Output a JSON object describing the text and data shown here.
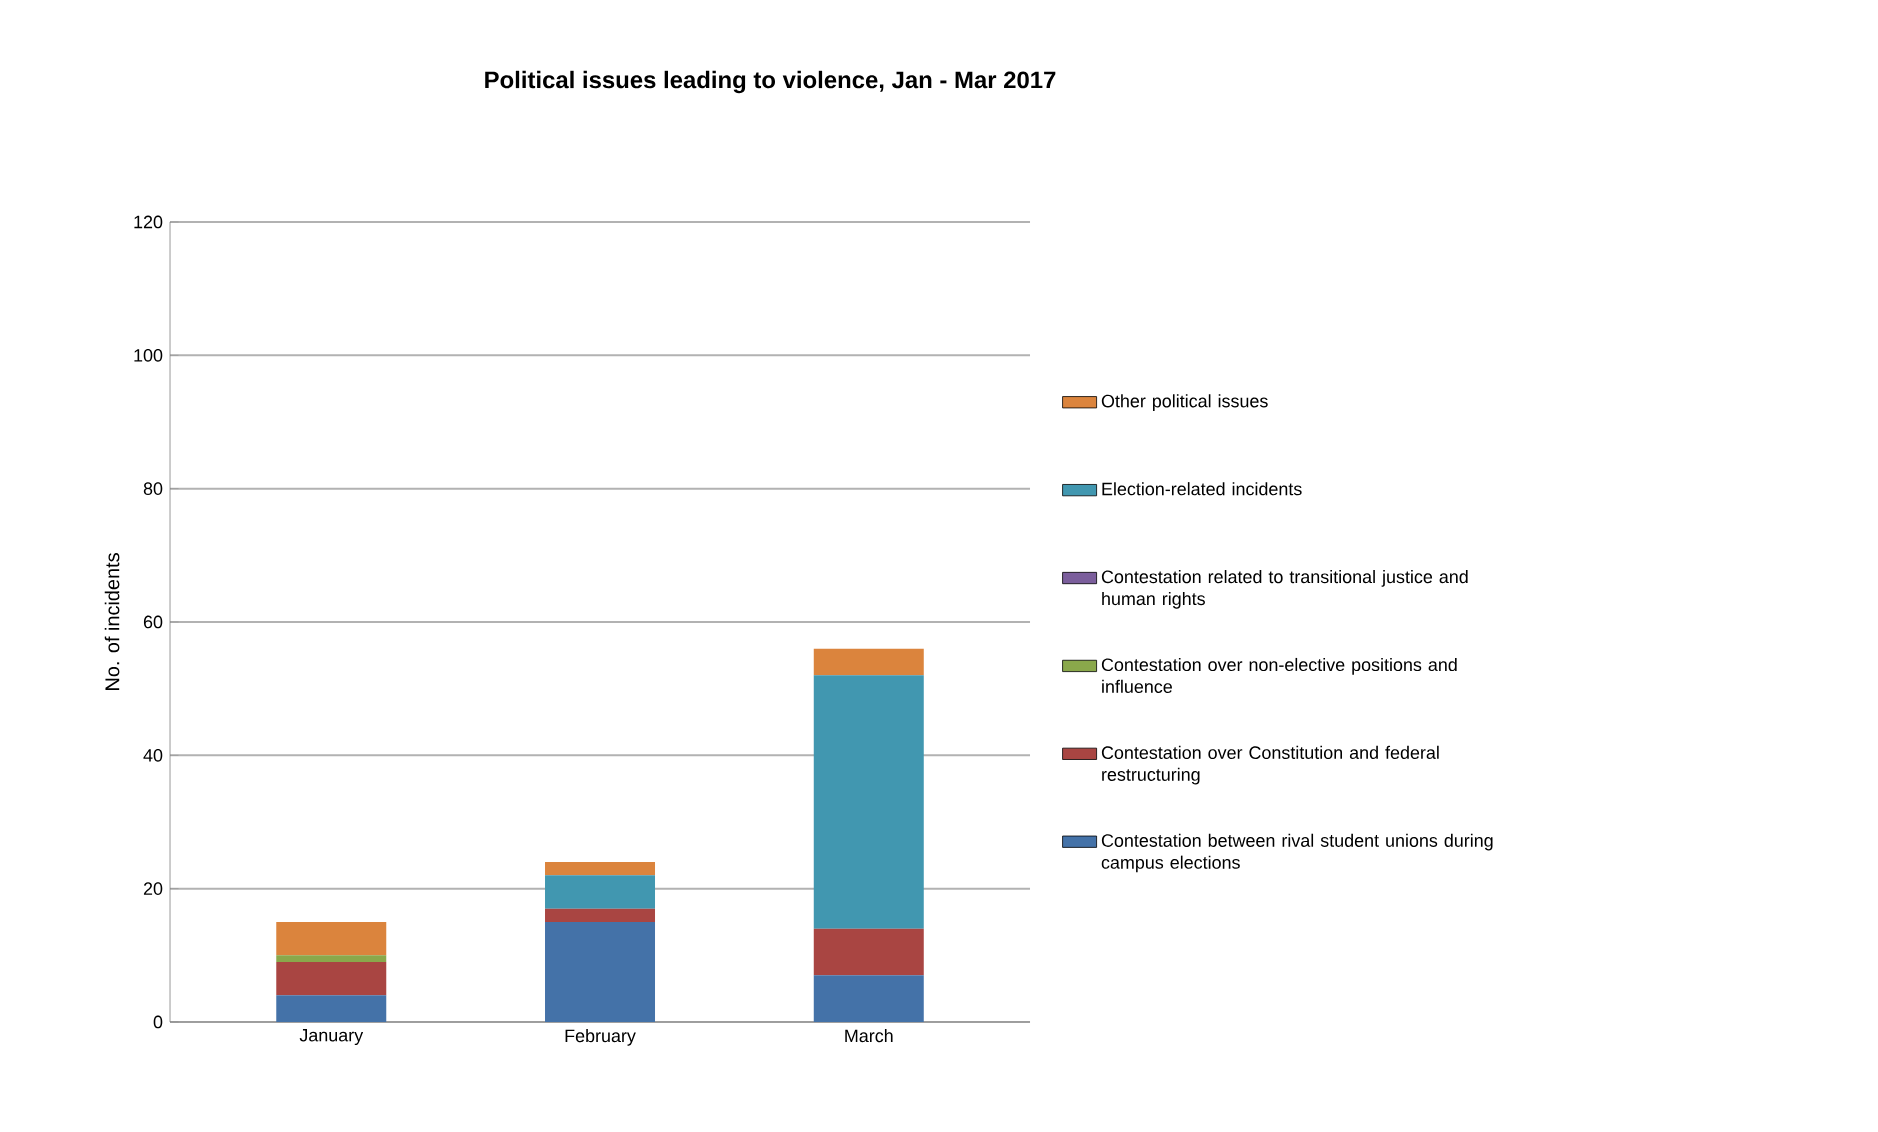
{
  "chart_data": {
    "type": "bar",
    "stacked": true,
    "title": "Political issues leading to violence, Jan - Mar 2017",
    "ylabel": "No. of incidents",
    "categories": [
      "January",
      "February",
      "March"
    ],
    "series": [
      {
        "name": "Contestation between rival student unions during campus elections",
        "color": "#4472a8",
        "values": [
          4,
          15,
          7
        ]
      },
      {
        "name": "Contestation over Constitution and federal restructuring",
        "color": "#a94542",
        "values": [
          5,
          2,
          7
        ]
      },
      {
        "name": "Contestation over non-elective positions and influence",
        "color": "#8aa84b",
        "values": [
          1,
          0,
          0
        ]
      },
      {
        "name": "Contestation related to transitional justice and human rights",
        "color": "#7b5e9c",
        "values": [
          0,
          0,
          0
        ]
      },
      {
        "name": "Election-related incidents",
        "color": "#4197b0",
        "values": [
          0,
          5,
          38
        ]
      },
      {
        "name": "Other political issues",
        "color": "#db843d",
        "values": [
          5,
          2,
          4
        ]
      }
    ],
    "ylim": [
      0,
      120
    ],
    "yticks": [
      0,
      20,
      40,
      60,
      80,
      100,
      120
    ],
    "grid": "y",
    "legend": "right"
  }
}
